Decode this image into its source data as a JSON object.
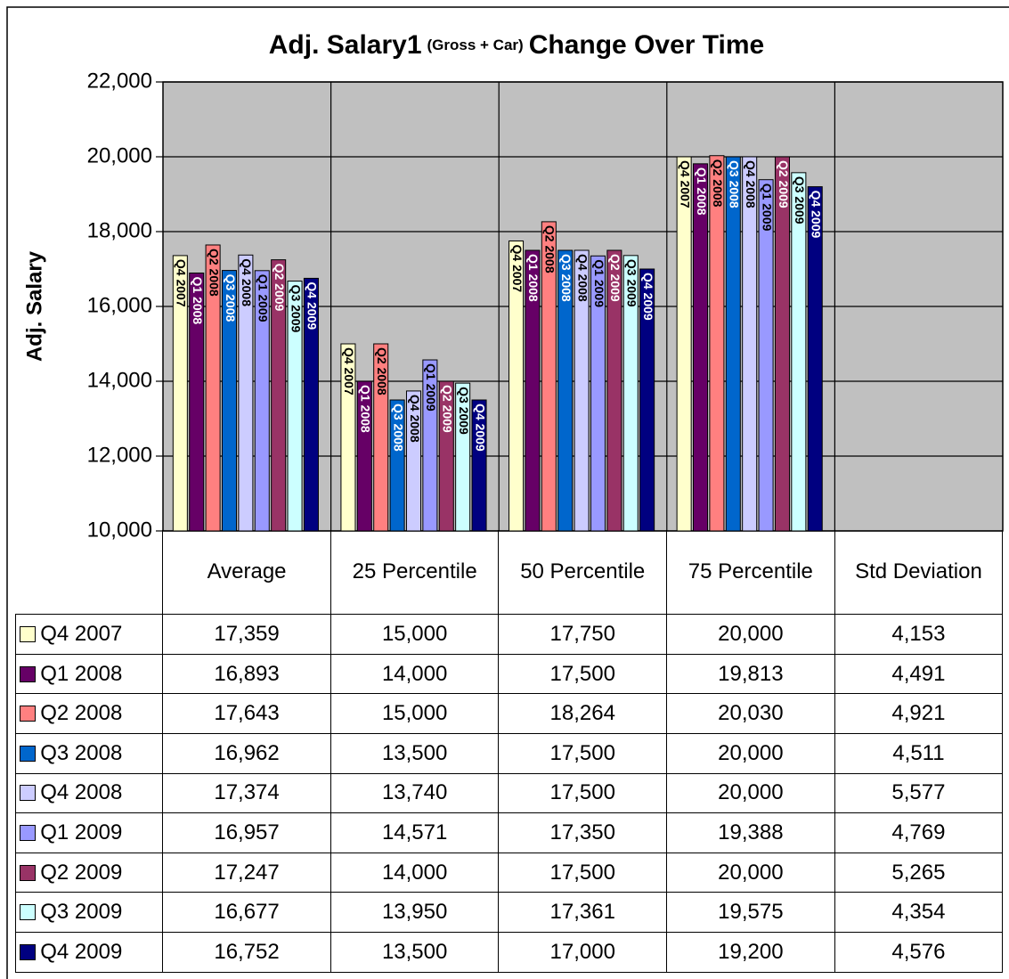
{
  "chart_data": {
    "type": "bar",
    "title_parts": [
      "Adj. Salary1",
      "(Gross + Car)",
      "Change Over Time"
    ],
    "y_label": "Adj. Salary",
    "categories": [
      "Average",
      "25 Percentile",
      "50 Percentile",
      "75 Percentile",
      "Std Deviation"
    ],
    "ylim": [
      10000,
      22000
    ],
    "yticks": [
      {
        "value": 10000,
        "label": "10,000"
      },
      {
        "value": 12000,
        "label": "12,000"
      },
      {
        "value": 14000,
        "label": "14,000"
      },
      {
        "value": 16000,
        "label": "16,000"
      },
      {
        "value": 18000,
        "label": "18,000"
      },
      {
        "value": 20000,
        "label": "20,000"
      },
      {
        "value": 22000,
        "label": "22,000"
      }
    ],
    "grid": true,
    "series": [
      {
        "name": "Q4 2007",
        "color": "#ffffcc",
        "values": [
          17359,
          15000,
          17750,
          20000,
          4153
        ],
        "value_labels": [
          "17,359",
          "15,000",
          "17,750",
          "20,000",
          "4,153"
        ]
      },
      {
        "name": "Q1 2008",
        "color": "#660066",
        "values": [
          16893,
          14000,
          17500,
          19813,
          4491
        ],
        "value_labels": [
          "16,893",
          "14,000",
          "17,500",
          "19,813",
          "4,491"
        ]
      },
      {
        "name": "Q2 2008",
        "color": "#ff8080",
        "values": [
          17643,
          15000,
          18264,
          20030,
          4921
        ],
        "value_labels": [
          "17,643",
          "15,000",
          "18,264",
          "20,030",
          "4,921"
        ]
      },
      {
        "name": "Q3 2008",
        "color": "#0066cc",
        "values": [
          16962,
          13500,
          17500,
          20000,
          4511
        ],
        "value_labels": [
          "16,962",
          "13,500",
          "17,500",
          "20,000",
          "4,511"
        ]
      },
      {
        "name": "Q4 2008",
        "color": "#ccccff",
        "values": [
          17374,
          13740,
          17500,
          20000,
          5577
        ],
        "value_labels": [
          "17,374",
          "13,740",
          "17,500",
          "20,000",
          "5,577"
        ]
      },
      {
        "name": "Q1 2009",
        "color": "#9999ff",
        "values": [
          16957,
          14571,
          17350,
          19388,
          4769
        ],
        "value_labels": [
          "16,957",
          "14,571",
          "17,350",
          "19,388",
          "4,769"
        ]
      },
      {
        "name": "Q2 2009",
        "color": "#993366",
        "values": [
          17247,
          14000,
          17500,
          20000,
          5265
        ],
        "value_labels": [
          "17,247",
          "14,000",
          "17,500",
          "20,000",
          "5,265"
        ]
      },
      {
        "name": "Q3 2009",
        "color": "#ccffff",
        "values": [
          16677,
          13950,
          17361,
          19575,
          4354
        ],
        "value_labels": [
          "16,677",
          "13,950",
          "17,361",
          "19,575",
          "4,354"
        ]
      },
      {
        "name": "Q4 2009",
        "color": "#000080",
        "values": [
          16752,
          13500,
          17000,
          19200,
          4576
        ],
        "value_labels": [
          "16,752",
          "13,500",
          "17,000",
          "19,200",
          "4,576"
        ]
      }
    ]
  }
}
